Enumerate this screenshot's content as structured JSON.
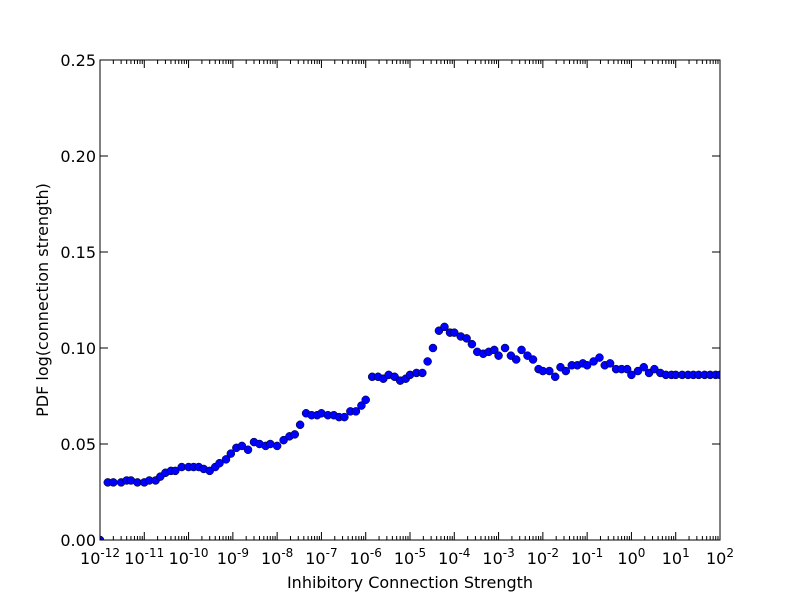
{
  "chart_data": {
    "type": "scatter",
    "title": "",
    "xlabel": "Inhibitory Connection Strength",
    "ylabel": "PDF log(connection strength)",
    "x_scale": "log",
    "xlim": [
      1e-12,
      100
    ],
    "ylim": [
      0.0,
      0.25
    ],
    "grid": false,
    "legend": "none",
    "marker": "circle",
    "marker_color": "#0000ff",
    "x_ticks": [
      {
        "base": "10",
        "exp": "-12"
      },
      {
        "base": "10",
        "exp": "-11"
      },
      {
        "base": "10",
        "exp": "-10"
      },
      {
        "base": "10",
        "exp": "-9"
      },
      {
        "base": "10",
        "exp": "-8"
      },
      {
        "base": "10",
        "exp": "-7"
      },
      {
        "base": "10",
        "exp": "-6"
      },
      {
        "base": "10",
        "exp": "-5"
      },
      {
        "base": "10",
        "exp": "-4"
      },
      {
        "base": "10",
        "exp": "-3"
      },
      {
        "base": "10",
        "exp": "-2"
      },
      {
        "base": "10",
        "exp": "-1"
      },
      {
        "base": "10",
        "exp": "0"
      },
      {
        "base": "10",
        "exp": "1"
      },
      {
        "base": "10",
        "exp": "2"
      }
    ],
    "y_ticks": [
      "0.00",
      "0.05",
      "0.10",
      "0.15",
      "0.20",
      "0.25"
    ],
    "series": [
      {
        "x": [
          1e-12,
          1.5e-12,
          2e-12,
          3e-12,
          4e-12,
          5e-12,
          7e-12,
          1e-11,
          1.3e-11,
          1.8e-11,
          2.3e-11,
          3e-11,
          4e-11,
          5e-11,
          7e-11,
          1e-10,
          1.3e-10,
          1.7e-10,
          2.2e-10,
          3e-10,
          4e-10,
          5e-10,
          7e-10,
          9e-10,
          1.2e-09,
          1.6e-09,
          2.2e-09,
          3e-09,
          4e-09,
          5.5e-09,
          7e-09,
          1e-08,
          1.4e-08,
          1.9e-08,
          2.5e-08,
          3.3e-08,
          4.5e-08,
          6e-08,
          8e-08,
          1e-07,
          1.4e-07,
          1.9e-07,
          2.5e-07,
          3.3e-07,
          4.5e-07,
          6e-07,
          8e-07,
          1e-06,
          1.4e-06,
          1.9e-06,
          2.5e-06,
          3.3e-06,
          4.5e-06,
          6e-06,
          8e-06,
          1e-05,
          1.4e-05,
          1.9e-05,
          2.5e-05,
          3.3e-05,
          4.5e-05,
          6e-05,
          8e-05,
          0.0001,
          0.00014,
          0.00019,
          0.00025,
          0.00033,
          0.00045,
          0.0006,
          0.0008,
          0.001,
          0.0014,
          0.0019,
          0.0025,
          0.0033,
          0.0045,
          0.006,
          0.008,
          0.01,
          0.014,
          0.019,
          0.025,
          0.033,
          0.045,
          0.06,
          0.08,
          0.1,
          0.14,
          0.19,
          0.25,
          0.33,
          0.45,
          0.6,
          0.8,
          1.0,
          1.4,
          1.9,
          2.5,
          3.3,
          4.5,
          6.0,
          8.0,
          10.0,
          14.0,
          19.0,
          25.0,
          33.0,
          45.0,
          60.0,
          80.0,
          100.0
        ],
        "y": [
          0.0,
          0.03,
          0.03,
          0.03,
          0.031,
          0.031,
          0.03,
          0.03,
          0.031,
          0.031,
          0.033,
          0.035,
          0.036,
          0.036,
          0.038,
          0.038,
          0.038,
          0.038,
          0.037,
          0.036,
          0.038,
          0.04,
          0.042,
          0.045,
          0.048,
          0.049,
          0.047,
          0.051,
          0.05,
          0.049,
          0.05,
          0.049,
          0.052,
          0.054,
          0.055,
          0.06,
          0.066,
          0.065,
          0.065,
          0.066,
          0.065,
          0.065,
          0.064,
          0.064,
          0.067,
          0.067,
          0.07,
          0.073,
          0.085,
          0.085,
          0.084,
          0.086,
          0.085,
          0.083,
          0.084,
          0.086,
          0.087,
          0.087,
          0.093,
          0.1,
          0.109,
          0.111,
          0.108,
          0.108,
          0.106,
          0.105,
          0.102,
          0.098,
          0.097,
          0.098,
          0.099,
          0.096,
          0.1,
          0.096,
          0.094,
          0.099,
          0.096,
          0.094,
          0.089,
          0.088,
          0.088,
          0.085,
          0.09,
          0.088,
          0.091,
          0.091,
          0.092,
          0.091,
          0.093,
          0.095,
          0.091,
          0.092,
          0.089,
          0.089,
          0.089,
          0.086,
          0.088,
          0.09,
          0.087,
          0.089,
          0.087,
          0.086,
          0.086,
          0.086,
          0.086,
          0.086,
          0.086,
          0.086,
          0.086,
          0.086,
          0.086,
          0.086
        ]
      }
    ]
  }
}
